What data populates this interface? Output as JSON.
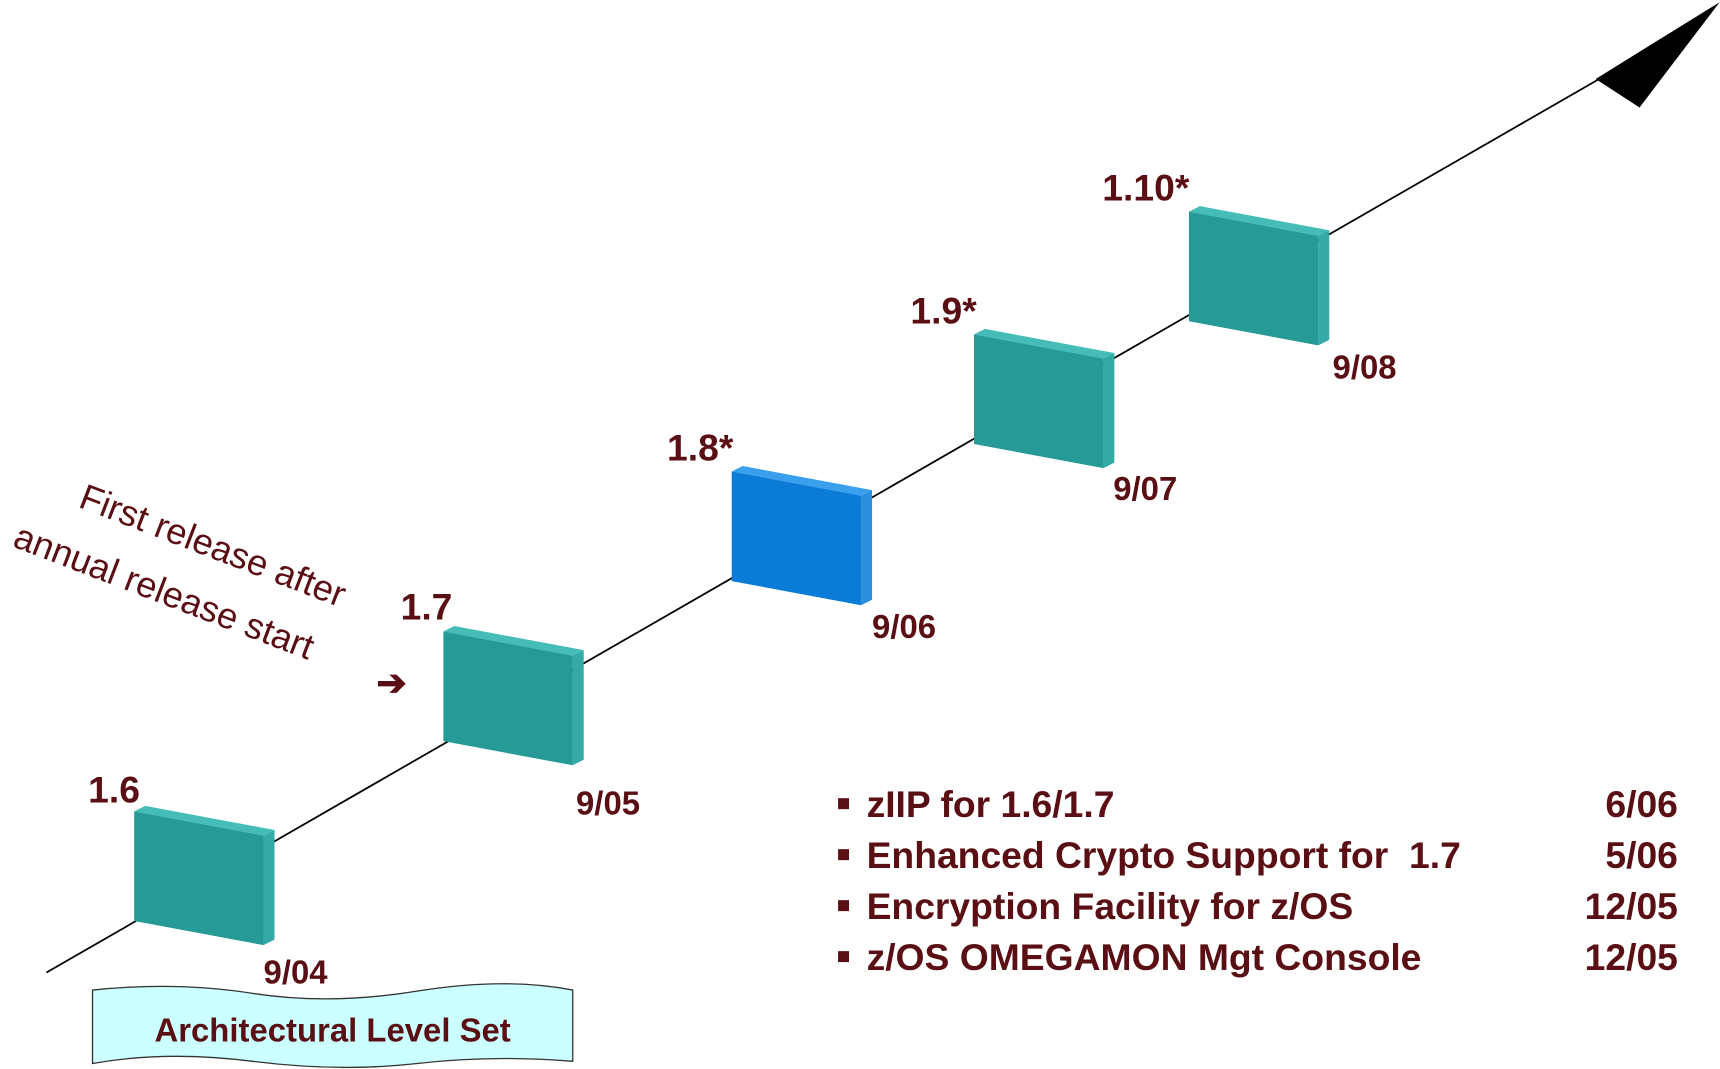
{
  "releases": [
    {
      "label": "1.6",
      "date": "9/04",
      "highlight": false
    },
    {
      "label": "1.7",
      "date": "9/05",
      "highlight": false
    },
    {
      "label": "1.8*",
      "date": "9/06",
      "highlight": true
    },
    {
      "label": "1.9*",
      "date": "9/07",
      "highlight": false
    },
    {
      "label": "1.10*",
      "date": "9/08",
      "highlight": false
    }
  ],
  "annotation": {
    "line1": "First release after",
    "line2": "annual release start",
    "arrow": "➔"
  },
  "items": [
    {
      "text": "zIIP for 1.6/1.7",
      "date": "6/06"
    },
    {
      "text": "Enhanced Crypto Support for  1.7",
      "date": "5/06"
    },
    {
      "text": "Encryption Facility for z/OS",
      "date": "12/05"
    },
    {
      "text": "z/OS OMEGAMON Mgt Console",
      "date": "12/05"
    }
  ],
  "footer": {
    "label": "Architectural Level Set"
  }
}
